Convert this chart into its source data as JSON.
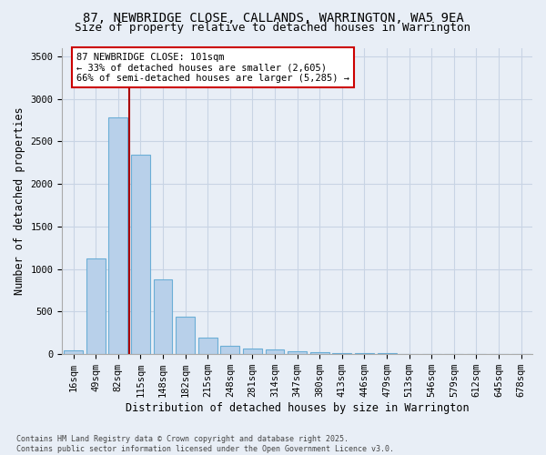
{
  "title_line1": "87, NEWBRIDGE CLOSE, CALLANDS, WARRINGTON, WA5 9EA",
  "title_line2": "Size of property relative to detached houses in Warrington",
  "xlabel": "Distribution of detached houses by size in Warrington",
  "ylabel": "Number of detached properties",
  "categories": [
    "16sqm",
    "49sqm",
    "82sqm",
    "115sqm",
    "148sqm",
    "182sqm",
    "215sqm",
    "248sqm",
    "281sqm",
    "314sqm",
    "347sqm",
    "380sqm",
    "413sqm",
    "446sqm",
    "479sqm",
    "513sqm",
    "546sqm",
    "579sqm",
    "612sqm",
    "645sqm",
    "678sqm"
  ],
  "values": [
    50,
    1120,
    2780,
    2340,
    880,
    440,
    200,
    100,
    70,
    55,
    30,
    20,
    15,
    15,
    10,
    5,
    3,
    2,
    2,
    1,
    1
  ],
  "bar_color": "#b8d0ea",
  "bar_edge_color": "#6baed6",
  "grid_color": "#c8d4e4",
  "bg_color": "#e8eef6",
  "vline_x": 2.5,
  "vline_color": "#aa0000",
  "annotation_text": "87 NEWBRIDGE CLOSE: 101sqm\n← 33% of detached houses are smaller (2,605)\n66% of semi-detached houses are larger (5,285) →",
  "annotation_box_color": "#ffffff",
  "annotation_box_edge": "#cc0000",
  "annotation_fontsize": 7.5,
  "title_fontsize1": 10,
  "title_fontsize2": 9,
  "xlabel_fontsize": 8.5,
  "ylabel_fontsize": 8.5,
  "tick_fontsize": 7.5,
  "footnote": "Contains HM Land Registry data © Crown copyright and database right 2025.\nContains public sector information licensed under the Open Government Licence v3.0.",
  "ylim": [
    0,
    3600
  ],
  "yticks": [
    0,
    500,
    1000,
    1500,
    2000,
    2500,
    3000,
    3500
  ]
}
